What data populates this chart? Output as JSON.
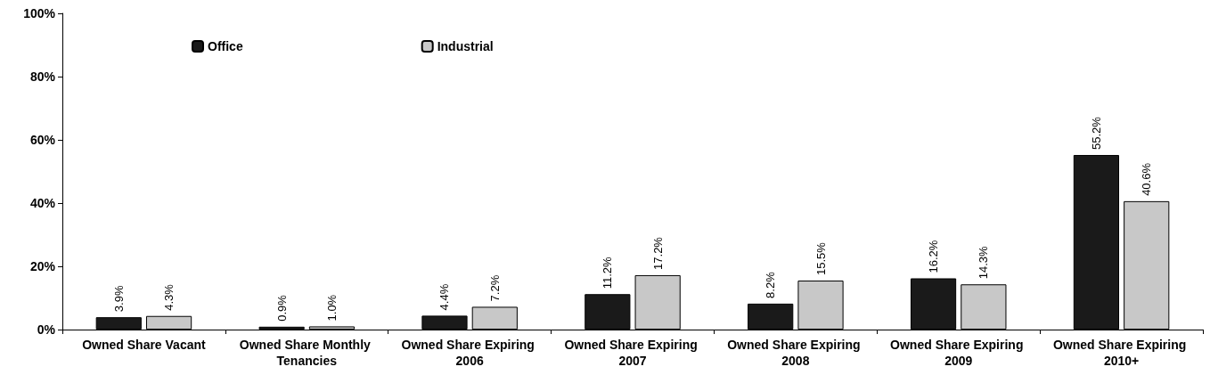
{
  "chart_data": {
    "type": "bar",
    "categories": [
      "Owned Share Vacant",
      "Owned Share Monthly Tenancies",
      "Owned Share Expiring 2006",
      "Owned Share Expiring 2007",
      "Owned Share Expiring 2008",
      "Owned Share Expiring 2009",
      "Owned Share Expiring 2010+"
    ],
    "series": [
      {
        "name": "Office",
        "color": "#1a1a1a",
        "values": [
          3.9,
          0.9,
          4.4,
          11.2,
          8.2,
          16.2,
          55.2
        ],
        "value_labels": [
          "3.9%",
          "0.9%",
          "4.4%",
          "11.2%",
          "8.2%",
          "16.2%",
          "55.2%"
        ]
      },
      {
        "name": "Industrial",
        "color": "#c8c8c8",
        "values": [
          4.3,
          1.0,
          7.2,
          17.2,
          15.5,
          14.3,
          40.6
        ],
        "value_labels": [
          "4.3%",
          "1.0%",
          "7.2%",
          "17.2%",
          "15.5%",
          "14.3%",
          "40.6%"
        ]
      }
    ],
    "ylim": [
      0,
      100
    ],
    "yticks": [
      {
        "value": 0,
        "label": "0%"
      },
      {
        "value": 20,
        "label": "20%"
      },
      {
        "value": 40,
        "label": "40%"
      },
      {
        "value": 60,
        "label": "60%"
      },
      {
        "value": 80,
        "label": "80%"
      },
      {
        "value": 100,
        "label": "100%"
      }
    ],
    "grid": false,
    "legend": "top left"
  }
}
